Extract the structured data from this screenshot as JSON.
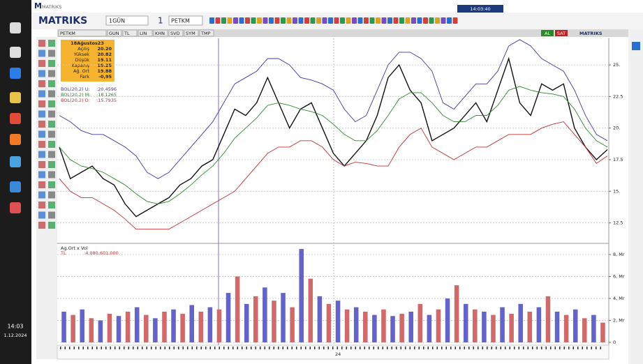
{
  "taskbar": {
    "time": "14:03",
    "date": "1.12.2024"
  },
  "app": {
    "title": "MATRIKS",
    "logo": "MATRIKS",
    "period": "1GÜN",
    "count": "1",
    "symbol": "PETKM",
    "clock": "14:03:40"
  },
  "chart_window": {
    "tabs": [
      "PETKM",
      "GUN",
      "TL",
      "LIN",
      "KHN",
      "SVD",
      "SYM",
      "TMP"
    ],
    "buttons": [
      "AL",
      "SAT"
    ],
    "brand": "MATRIKS",
    "date_label": "24"
  },
  "info_box": {
    "date": "18Ağustos23",
    "rows": [
      [
        "Açılış",
        "20.20"
      ],
      [
        "Yüksek",
        "20.82"
      ],
      [
        "Düşük",
        "19.11"
      ],
      [
        "Kapanış",
        "19.25"
      ],
      [
        "Ağ. Ort",
        "19.88"
      ],
      [
        "Fark",
        "-0,95"
      ]
    ]
  },
  "indicators": [
    {
      "name": "BOL(20,2) U:",
      "value": ":20.4596",
      "color": "#3a3aa0"
    },
    {
      "name": "BOL(20,2) M:",
      "value": ":18.1265",
      "color": "#2a7a2a"
    },
    {
      "name": "BOL(20,2) D:",
      "value": ":15.7935",
      "color": "#c03030"
    }
  ],
  "chart_data": [
    {
      "type": "line",
      "ylim": [
        11.1,
        27.1
      ],
      "grid": true,
      "yticks": [
        {
          "value": 12.5,
          "label": "12.5"
        },
        {
          "value": 15,
          "label": "15."
        },
        {
          "value": 17.5,
          "label": "17.5"
        },
        {
          "value": 20,
          "label": "20."
        },
        {
          "value": 22.5,
          "label": "22.5"
        },
        {
          "value": 25,
          "label": "25."
        }
      ],
      "series": [
        {
          "color": "#111111",
          "values": [
            18.5,
            16,
            16.5,
            17,
            16,
            15.5,
            14,
            13,
            13.5,
            14,
            14.5,
            15.5,
            16,
            17,
            17.5,
            19.5,
            21.5,
            21,
            22,
            24,
            22,
            20,
            21.5,
            22,
            20,
            18,
            17,
            18,
            19,
            21,
            24,
            25,
            23,
            22,
            19,
            19.5,
            20,
            21,
            22,
            20.5,
            23,
            25.5,
            22,
            21,
            23.5,
            23,
            23.5,
            20,
            18.5,
            17.5,
            18.3
          ]
        },
        {
          "color": "#3a3aa0",
          "values": [
            21,
            20.5,
            19.8,
            19.5,
            19.5,
            19,
            18.5,
            17.8,
            16.5,
            16,
            16.5,
            17.5,
            18.5,
            19.5,
            20.5,
            22,
            23.5,
            24,
            24.5,
            25.5,
            25.5,
            25,
            24,
            23.8,
            23.5,
            23,
            21.5,
            20.5,
            21,
            23,
            25,
            26,
            26,
            25.5,
            24.5,
            22,
            21.5,
            22.5,
            23.5,
            23.5,
            24.5,
            26.5,
            27,
            26.5,
            25.5,
            25,
            24.5,
            23,
            21,
            19.5,
            19
          ]
        },
        {
          "color": "#2a8a2a",
          "values": [
            18.5,
            17.5,
            17,
            16.8,
            16.5,
            16,
            15.5,
            14.8,
            14.2,
            14,
            14.2,
            14.8,
            15.5,
            16.3,
            17,
            18,
            19.2,
            20,
            20.8,
            21.8,
            22,
            21.8,
            21.5,
            21.3,
            21,
            20.3,
            19.5,
            19,
            19,
            19.8,
            21,
            22.3,
            22.8,
            22.8,
            22,
            21,
            20.5,
            20.5,
            21,
            21,
            21.8,
            23,
            23.3,
            23,
            22.8,
            22.7,
            22.5,
            21.5,
            20,
            19,
            18.5
          ]
        },
        {
          "color": "#c03030",
          "values": [
            16,
            15,
            14.5,
            14.5,
            14,
            13.5,
            12.8,
            12,
            12,
            12,
            12,
            12.5,
            13,
            13.5,
            14,
            14.5,
            15,
            16,
            17,
            18,
            18.5,
            18.5,
            19,
            19,
            18.5,
            17.5,
            17,
            17.3,
            17.2,
            17,
            17,
            18.5,
            19.5,
            20,
            18.5,
            18,
            17.5,
            18,
            18.5,
            18.5,
            19,
            19.5,
            19.5,
            19.5,
            20,
            20.3,
            20.5,
            19.5,
            18.5,
            17.2,
            17.8
          ]
        }
      ]
    },
    {
      "type": "bar",
      "title": "Ag.Ort x Vol",
      "subtitle": "TL",
      "annotation": ":4.080.601.000",
      "ylim": [
        0,
        8.95
      ],
      "grid": true,
      "yticks": [
        0,
        {
          "value": 2,
          "label": "2, Mr"
        },
        {
          "value": 4,
          "label": "4, Mr"
        },
        {
          "value": 6,
          "label": "6, Mr"
        },
        {
          "value": 8,
          "label": "8, Mr"
        }
      ],
      "colors": [
        "#6464c8",
        "#d06a6a"
      ],
      "values": [
        2.8,
        2.5,
        3,
        2.2,
        2,
        2.6,
        2.4,
        2.8,
        3.2,
        2.5,
        2.2,
        2.8,
        3,
        2.6,
        3.4,
        2.8,
        3.2,
        3,
        4.5,
        6,
        3.5,
        4.2,
        5,
        3.8,
        4.5,
        3.2,
        8.5,
        5.8,
        4.2,
        3.5,
        3.8,
        3,
        3.2,
        2.8,
        2.5,
        3,
        2.4,
        2.6,
        2.8,
        3.5,
        2.5,
        3,
        4,
        5.2,
        3.5,
        3,
        2.8,
        2.5,
        3.2,
        2.6,
        3.5,
        2.8,
        3.2,
        4.2,
        2.8,
        2.5,
        3,
        2.2,
        2.5,
        1.8
      ]
    }
  ]
}
